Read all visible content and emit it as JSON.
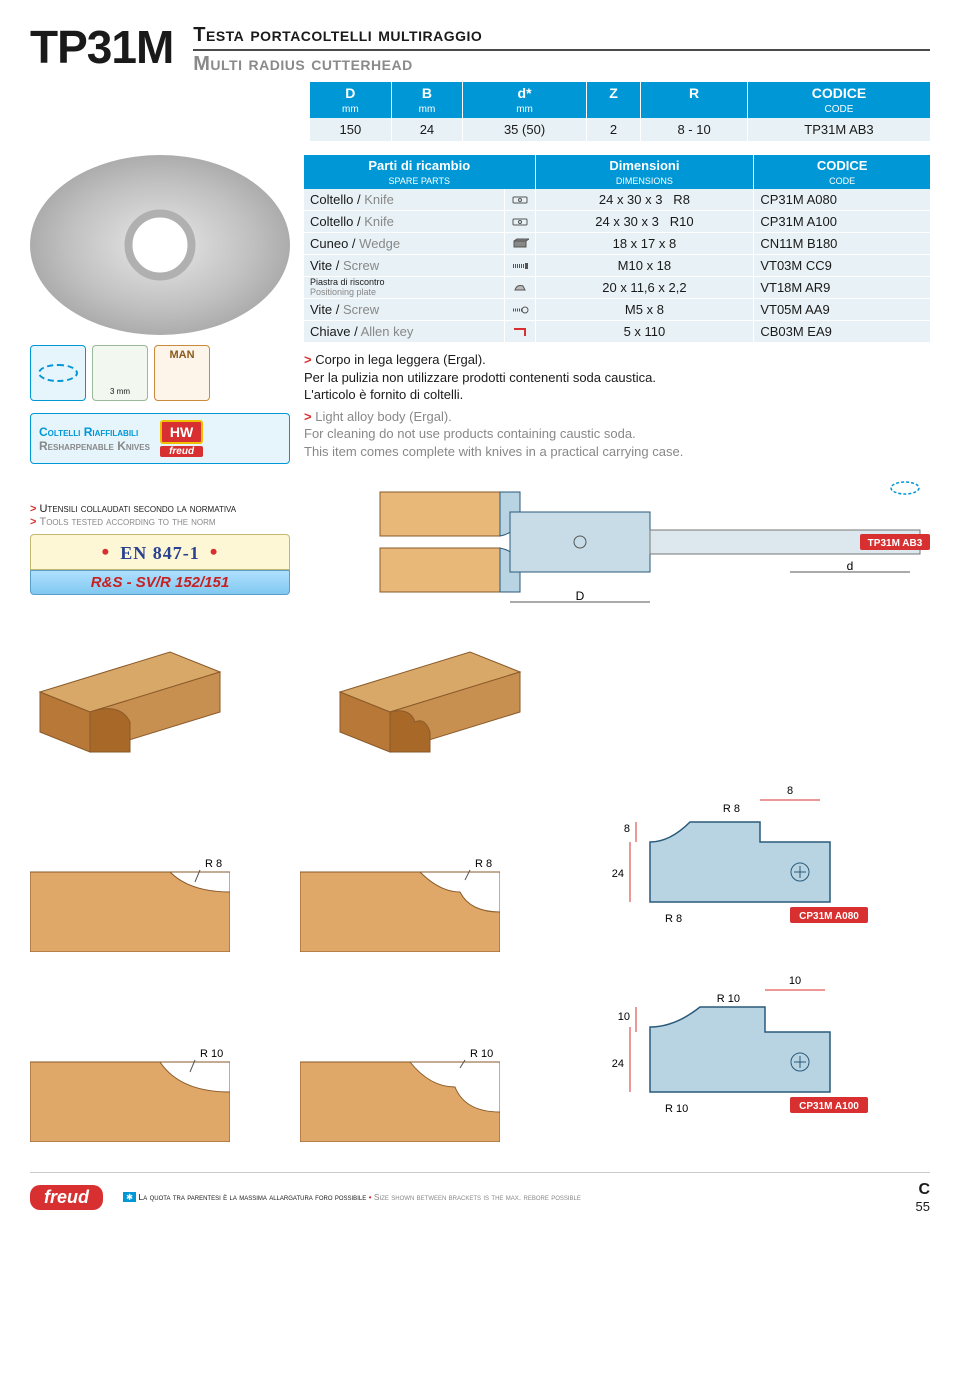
{
  "header": {
    "product_code": "TP31M",
    "title_it": "Testa portacoltelli multiraggio",
    "title_en": "Multi radius cutterhead"
  },
  "main_table": {
    "columns_top": [
      "D",
      "B",
      "d*",
      "Z",
      "R",
      "CODICE"
    ],
    "columns_sub": [
      "mm",
      "mm",
      "mm",
      "",
      "",
      "CODE"
    ],
    "row": [
      "150",
      "24",
      "35 (50)",
      "2",
      "8 - 10",
      "TP31M  AB3"
    ]
  },
  "parts_table": {
    "header_top": [
      "Parti di ricambio",
      "Dimensioni",
      "CODICE"
    ],
    "header_sub": [
      "SPARE PARTS",
      "DIMENSIONS",
      "CODE"
    ],
    "rows": [
      {
        "it": "Coltello",
        "en": "Knife",
        "icon": "knife",
        "dim": "24 x 30 x 3",
        "r": "R8",
        "code": "CP31M A080"
      },
      {
        "it": "Coltello",
        "en": "Knife",
        "icon": "knife",
        "dim": "24 x 30 x 3",
        "r": "R10",
        "code": "CP31M A100"
      },
      {
        "it": "Cuneo",
        "en": "Wedge",
        "icon": "wedge",
        "dim": "18 x 17 x 8",
        "r": "",
        "code": "CN11M B180"
      },
      {
        "it": "Vite",
        "en": "Screw",
        "icon": "screw",
        "dim": "M10 x 18",
        "r": "",
        "code": "VT03M  CC9"
      },
      {
        "it": "Piastra di riscontro",
        "en": "Positioning plate",
        "icon": "plate",
        "dim": "20 x 11,6 x 2,2",
        "r": "",
        "code": "VT18M  AR9",
        "small": true
      },
      {
        "it": "Vite",
        "en": "Screw",
        "icon": "screw2",
        "dim": "M5 x 8",
        "r": "",
        "code": "VT05M  AA9"
      },
      {
        "it": "Chiave",
        "en": "Allen key",
        "icon": "allen",
        "dim": "5 x 110",
        "r": "",
        "code": "CB03M  EA9"
      }
    ]
  },
  "notes": {
    "it_line1": "Corpo in lega leggera (Ergal).",
    "it_line2": "Per la pulizia non utilizzare prodotti contenenti soda caustica.",
    "it_line3": "L'articolo è fornito di coltelli.",
    "en_line1": "Light alloy body (Ergal).",
    "en_line2": "For cleaning do not use products containing caustic soda.",
    "en_line3": "This item comes complete with knives in a practical carrying case."
  },
  "left_labels": {
    "knives_it": "Coltelli Riaffilabili",
    "knives_en": "Resharpenable Knives",
    "man": "MAN",
    "mm3": "3 mm",
    "hw": "HW",
    "freud": "freud"
  },
  "norm": {
    "it": "Utensili collaudati secondo la normativa",
    "en": "Tools tested according to the norm",
    "en847": "EN 847-1",
    "rs": "R&S - SV/R 152/151"
  },
  "diagram": {
    "code_badge": "TP31M  AB3",
    "D": "D",
    "d": "d"
  },
  "knife_diagrams": {
    "r8": "R 8",
    "r10": "R 10",
    "v8": "8",
    "v10": "10",
    "v24": "24",
    "code_a080": "CP31M A080",
    "code_a100": "CP31M A100"
  },
  "footer": {
    "freud": "freud",
    "text_it": "La quota tra parentesi è la massima allargatura foro possibile",
    "text_en": "Size shown between brackets is the max. rebore possible",
    "page_c": "C",
    "page_num": "55"
  },
  "colors": {
    "brand_blue": "#0097d6",
    "brand_red": "#d83030",
    "table_bg": "#e8f1f5",
    "wood_light": "#e8b878",
    "wood_dark": "#b87838",
    "steel": "#b8d4e2",
    "gray_text": "#888888"
  }
}
